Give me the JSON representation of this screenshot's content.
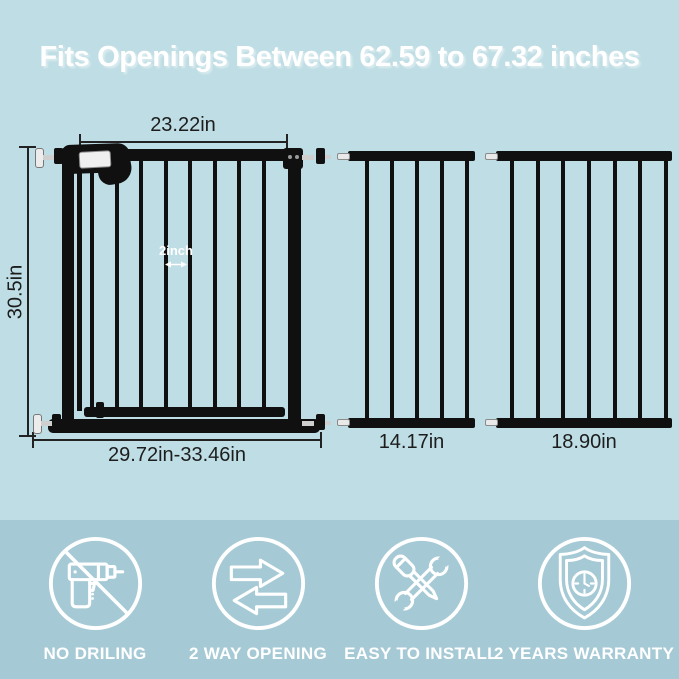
{
  "title": "Fits Openings Between 62.59 to 67.32 inches",
  "colors": {
    "background_top": "#bedde4",
    "background_bottom": "#a6cad5",
    "gate_black": "#101010",
    "measure_text": "#1d1d1d",
    "white": "#ffffff"
  },
  "gate_diagram": {
    "door_width_label": "23.22in",
    "height_label": "30.5in",
    "base_width_label": "29.72in-33.46in",
    "bar_spacing_label": "2inch",
    "door_bar_count": 8
  },
  "extensions": [
    {
      "label": "14.17in",
      "bar_count": 5
    },
    {
      "label": "18.90in",
      "bar_count": 7
    }
  ],
  "features": [
    {
      "icon": "no-drilling-icon",
      "label": "NO DRILING"
    },
    {
      "icon": "two-way-arrows-icon",
      "label": "2 WAY OPENING"
    },
    {
      "icon": "tools-icon",
      "label": "EASY TO INSTALL"
    },
    {
      "icon": "shield-warranty-icon",
      "label": "2 YEARS WARRANTY"
    }
  ]
}
